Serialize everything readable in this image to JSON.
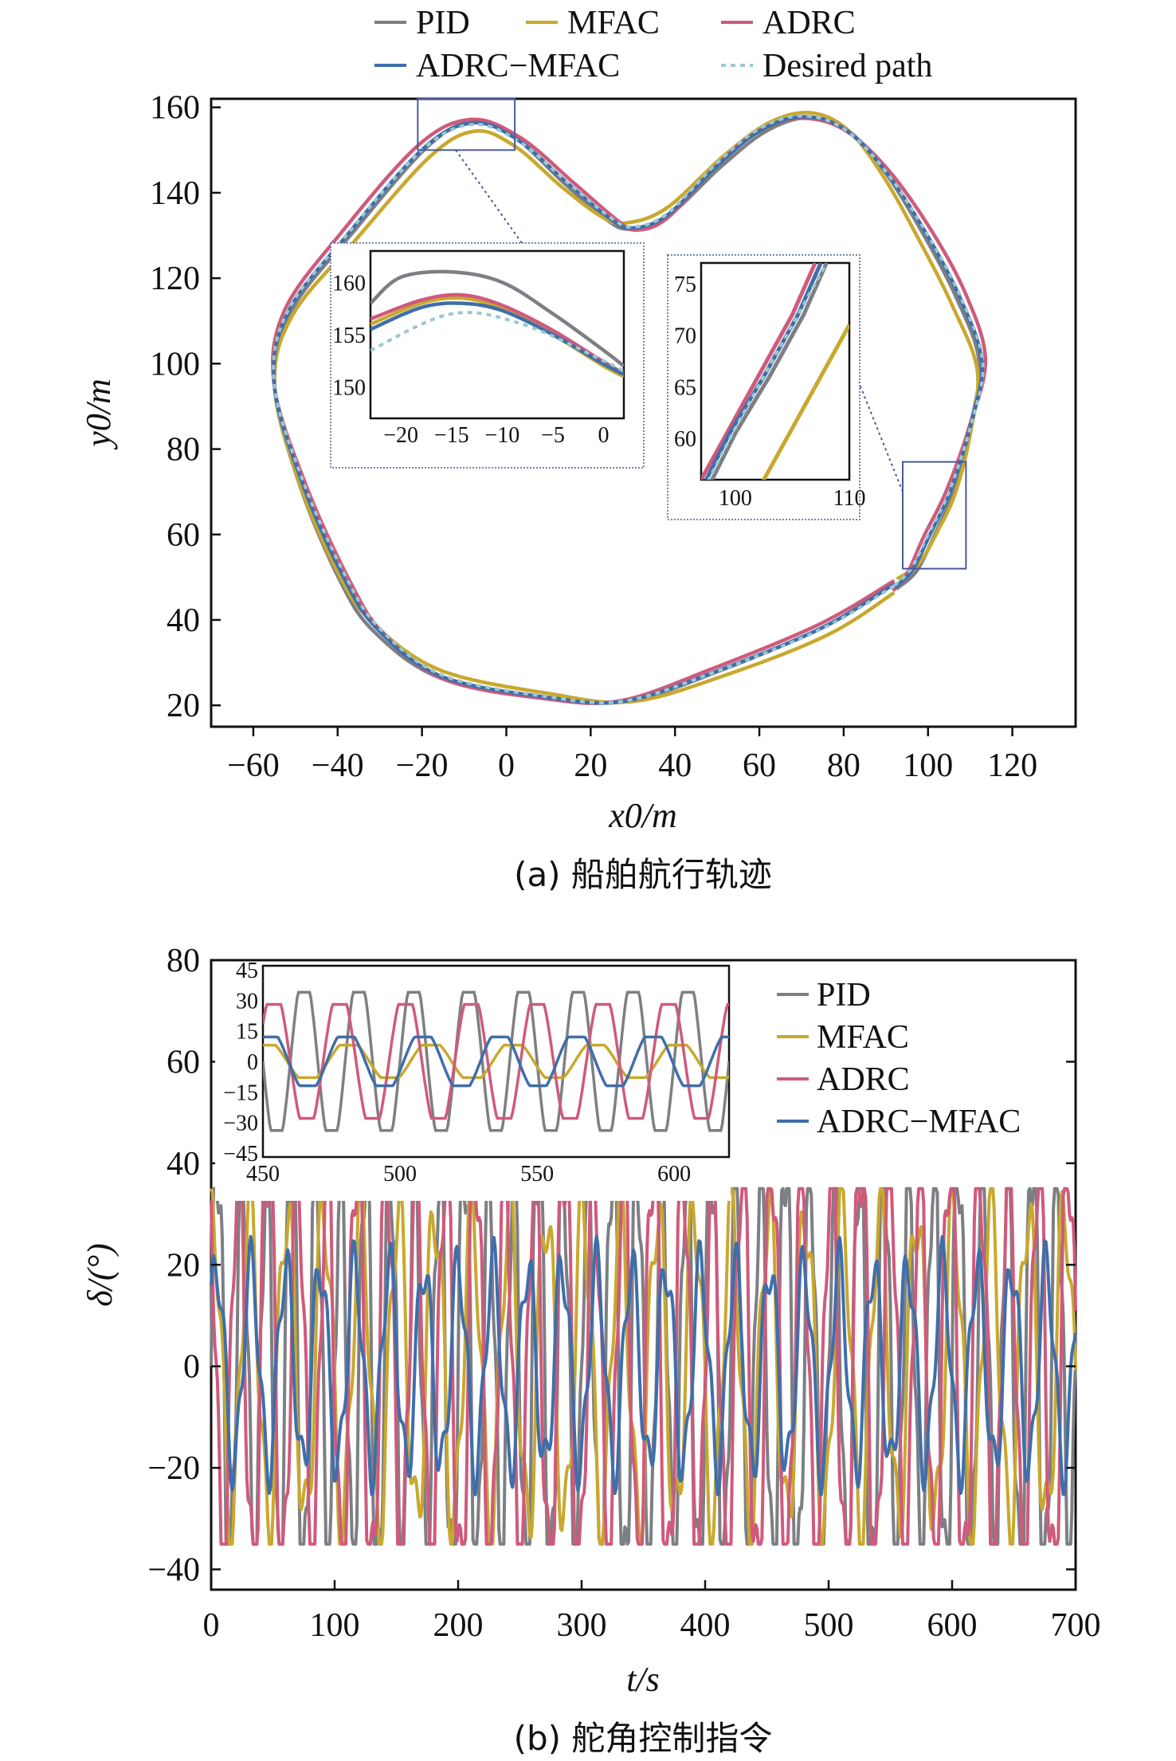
{
  "colors": {
    "PID": "#7d7f84",
    "MFAC": "#c8a82e",
    "ADRC": "#cf5a7c",
    "ADRC-MFAC": "#3f6eaa",
    "Desired path": "#9cc7cf",
    "box": "#4a5a9a"
  },
  "chart_data": [
    {
      "type": "line",
      "caption": "(a) 船舶航行轨迹",
      "xlabel": "x0/m",
      "ylabel": "y0/m",
      "x_ticks": [
        "−60",
        "−40",
        "−20",
        "0",
        "20",
        "40",
        "60",
        "80",
        "100",
        "120"
      ],
      "y_ticks": [
        "20",
        "40",
        "60",
        "80",
        "100",
        "120",
        "140",
        "160"
      ],
      "xlim": [
        -70,
        135
      ],
      "ylim": [
        15,
        162
      ],
      "legend": [
        "PID",
        "MFAC",
        "ADRC",
        "ADRC−MFAC",
        "Desired path"
      ],
      "desired_path": [
        [
          92,
          48
        ],
        [
          75,
          38
        ],
        [
          50,
          28
        ],
        [
          28,
          21
        ],
        [
          10,
          22
        ],
        [
          -15,
          27
        ],
        [
          -30,
          38
        ],
        [
          -38,
          50
        ],
        [
          -48,
          72
        ],
        [
          -55,
          95
        ],
        [
          -52,
          112
        ],
        [
          -38,
          130
        ],
        [
          -20,
          150
        ],
        [
          -8,
          156
        ],
        [
          3,
          152
        ],
        [
          15,
          142
        ],
        [
          25,
          134
        ],
        [
          30,
          132
        ],
        [
          38,
          135
        ],
        [
          50,
          147
        ],
        [
          60,
          155
        ],
        [
          70,
          158
        ],
        [
          80,
          155
        ],
        [
          90,
          145
        ],
        [
          100,
          130
        ],
        [
          108,
          115
        ],
        [
          113,
          100
        ],
        [
          110,
          85
        ],
        [
          105,
          70
        ],
        [
          100,
          60
        ],
        [
          96,
          52
        ]
      ],
      "series": [
        {
          "name": "PID",
          "points": [
            [
              -5,
              157
            ],
            [
              -15,
              160
            ],
            [
              -25,
              152
            ],
            [
              -35,
              135
            ],
            [
              -45,
              118
            ],
            [
              -54,
              108
            ],
            [
              -55,
              98
            ],
            [
              -52,
              85
            ],
            [
              -45,
              68
            ],
            [
              -38,
              52
            ],
            [
              -28,
              40
            ],
            [
              -10,
              30
            ],
            [
              10,
              25
            ],
            [
              28,
              21
            ],
            [
              34,
              22
            ],
            [
              45,
              27
            ],
            [
              60,
              33
            ],
            [
              75,
              39
            ],
            [
              88,
              46
            ],
            [
              92,
              48
            ]
          ]
        },
        {
          "name": "MFAC",
          "points": [
            [
              -8,
              156
            ],
            [
              -20,
              154
            ],
            [
              -40,
              132
            ],
            [
              -52,
              113
            ],
            [
              -55,
              100
            ],
            [
              -54,
              88
            ],
            [
              -48,
              70
            ],
            [
              -40,
              52
            ],
            [
              -30,
              40
            ],
            [
              -10,
              31
            ],
            [
              10,
              25
            ],
            [
              25,
              22
            ],
            [
              40,
              24
            ],
            [
              55,
              30
            ],
            [
              70,
              36
            ],
            [
              82,
              42
            ],
            [
              92,
              47
            ]
          ]
        },
        {
          "name": "ADRC",
          "points": [
            [
              -8,
              156
            ],
            [
              -20,
              154
            ],
            [
              -38,
              132
            ],
            [
              -50,
              113
            ],
            [
              -54,
              99
            ],
            [
              -52,
              86
            ],
            [
              -46,
              70
            ],
            [
              -38,
              53
            ],
            [
              -28,
              42
            ],
            [
              -10,
              31
            ],
            [
              10,
              25
            ],
            [
              28,
              22
            ],
            [
              40,
              26
            ],
            [
              55,
              31
            ],
            [
              65,
              34
            ],
            [
              72,
              34
            ]
          ]
        },
        {
          "name": "ADRC−MFAC",
          "points": [
            [
              -8,
              156
            ],
            [
              -20,
              154
            ],
            [
              -38,
              132
            ],
            [
              -50,
              113
            ],
            [
              -54,
              99
            ],
            [
              -52,
              86
            ],
            [
              -46,
              70
            ],
            [
              -38,
              52
            ],
            [
              -28,
              42
            ],
            [
              -10,
              31
            ],
            [
              10,
              25
            ],
            [
              28,
              22
            ],
            [
              40,
              26
            ],
            [
              60,
              32
            ],
            [
              78,
              40
            ],
            [
              91,
              47
            ]
          ]
        }
      ],
      "insets": [
        {
          "x_ticks": [
            "−20",
            "−15",
            "−10",
            "−5",
            "0"
          ],
          "y_ticks": [
            "150",
            "155",
            "160"
          ],
          "xlim": [
            -23,
            2
          ],
          "ylim": [
            147,
            163
          ]
        },
        {
          "x_ticks": [
            "100",
            "110"
          ],
          "y_ticks": [
            "60",
            "65",
            "70",
            "75"
          ],
          "xlim": [
            97,
            110
          ],
          "ylim": [
            56,
            77
          ]
        }
      ]
    },
    {
      "type": "line",
      "caption": "(b) 舵角控制指令",
      "xlabel": "t/s",
      "ylabel": "δ/(°)",
      "x_ticks": [
        "0",
        "100",
        "200",
        "300",
        "400",
        "500",
        "600",
        "700"
      ],
      "y_ticks": [
        "−40",
        "−20",
        "0",
        "20",
        "40",
        "60",
        "80"
      ],
      "xlim": [
        0,
        700
      ],
      "ylim": [
        -44,
        80
      ],
      "saturation": 35,
      "legend": [
        "PID",
        "MFAC",
        "ADRC",
        "ADRC−MFAC"
      ],
      "series": [
        {
          "name": "PID",
          "period_s": 20,
          "amplitude": 35
        },
        {
          "name": "MFAC",
          "period_s": 30,
          "amplitude": 25
        },
        {
          "name": "ADRC",
          "period_s": 24,
          "amplitude": 35
        },
        {
          "name": "ADRC−MFAC",
          "period_s": 28,
          "amplitude": 16
        }
      ],
      "inset": {
        "x_ticks": [
          "450",
          "500",
          "550",
          "600"
        ],
        "y_ticks": [
          "−45",
          "−30",
          "−15",
          "0",
          "15",
          "30",
          "45"
        ],
        "xlim": [
          450,
          620
        ],
        "ylim": [
          -47,
          47
        ]
      }
    }
  ]
}
